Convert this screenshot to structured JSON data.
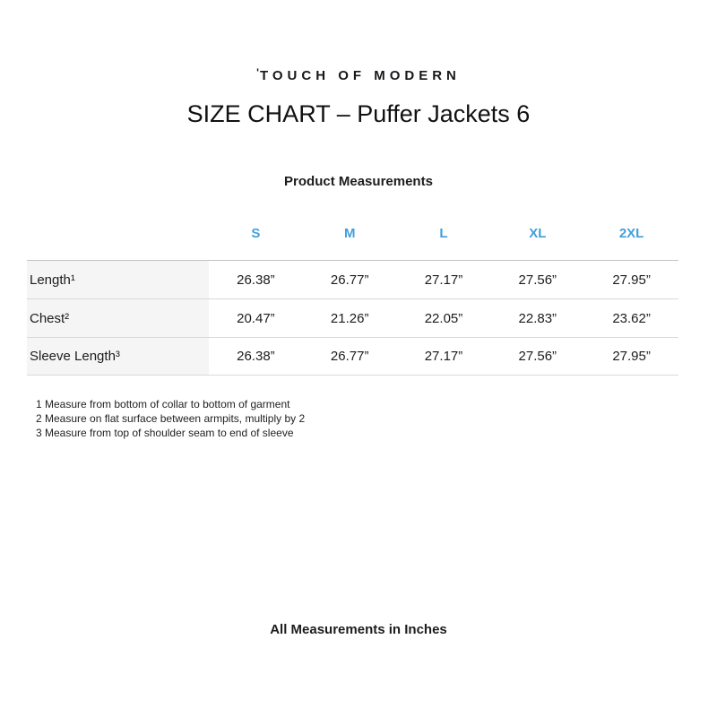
{
  "brand": {
    "mark": "'",
    "name": "TOUCH OF MODERN"
  },
  "title": "SIZE CHART – Puffer Jackets 6",
  "section_title": "Product Measurements",
  "table": {
    "size_headers": [
      "S",
      "M",
      "L",
      "XL",
      "2XL"
    ],
    "rows": [
      {
        "label": "Length¹",
        "values": [
          "26.38”",
          "26.77”",
          "27.17”",
          "27.56”",
          "27.95”"
        ]
      },
      {
        "label": "Chest²",
        "values": [
          "20.47”",
          "21.26”",
          "22.05”",
          "22.83”",
          "23.62”"
        ]
      },
      {
        "label": "Sleeve Length³",
        "values": [
          "26.38”",
          "26.77”",
          "27.17”",
          "27.56”",
          "27.95”"
        ]
      }
    ]
  },
  "footnotes": [
    "1 Measure from bottom of collar to bottom of garment",
    "2 Measure on flat surface between armpits, multiply by 2",
    "3 Measure from top of shoulder seam to end of sleeve"
  ],
  "footer_note": "All Measurements in Inches",
  "colors": {
    "accent_blue": "#41a0dc",
    "text": "#1c1c1c",
    "label_column_bg": "#f5f5f5",
    "separator": "#d9d9d9"
  }
}
